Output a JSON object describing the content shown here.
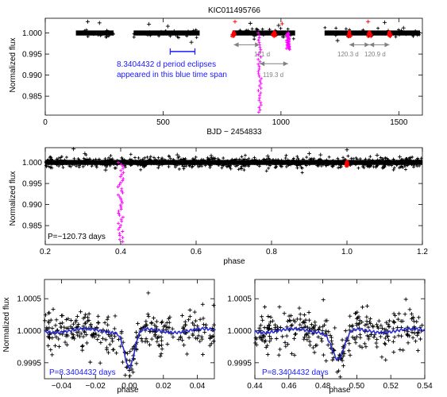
{
  "chart_data": [
    {
      "type": "scatter",
      "title": "KIC011495766",
      "xlabel": "BJD − 2454833",
      "ylabel": "Normalized flux",
      "xlim": [
        0,
        1600
      ],
      "ylim": [
        0.9805,
        1.0035
      ],
      "xticks": [
        0,
        500,
        1000,
        1500
      ],
      "yticks": [
        0.985,
        0.99,
        0.995,
        1.0
      ],
      "ytick_labels": [
        "0.985",
        "0.990",
        "0.995",
        "1.000"
      ],
      "observed_segments": [
        [
          130,
          290
        ],
        [
          375,
          655
        ],
        [
          795,
          1060
        ],
        [
          1185,
          1590
        ]
      ],
      "red_eclipses_x": [
        800,
        972,
        1290,
        1375,
        1460
      ],
      "magenta_eclipses": [
        {
          "x": 910,
          "min_flux": 0.9812
        },
        {
          "x": 1030,
          "min_flux": 0.9961
        }
      ],
      "blue_span": [
        530,
        635
      ],
      "annotations": [
        {
          "text": "8.3404432 d period eclipses",
          "x": 575,
          "y": 0.9942,
          "color": "#1a1aff"
        },
        {
          "text": "appeared in this blue time span",
          "x": 575,
          "y": 0.9927,
          "color": "#1a1aff"
        },
        {
          "text": "121 d",
          "x": 855,
          "y": 0.9964,
          "color": "#808080",
          "arrow": [
            800,
            910
          ]
        },
        {
          "text": "119.3 d",
          "x": 975,
          "y": 0.9917,
          "color": "#808080",
          "arrow": [
            910,
            1030
          ]
        },
        {
          "text": "120.3 d",
          "x": 1330,
          "y": 0.9964,
          "color": "#808080",
          "arrow": [
            1290,
            1375
          ]
        },
        {
          "text": "120.9 d",
          "x": 1420,
          "y": 0.9964,
          "color": "#808080",
          "arrow": [
            1375,
            1460
          ]
        }
      ]
    },
    {
      "type": "scatter",
      "xlabel": "phase",
      "ylabel": "Normalized flux",
      "xlim": [
        0.2,
        1.2
      ],
      "ylim": [
        0.9805,
        1.0035
      ],
      "xticks": [
        0.2,
        0.4,
        0.6,
        0.8,
        1.0,
        1.2
      ],
      "xtick_labels": [
        "0.2",
        "0.4",
        "0.6",
        "0.8",
        "1.0",
        "1.2"
      ],
      "yticks": [
        0.985,
        0.99,
        0.995,
        1.0
      ],
      "ytick_labels": [
        "0.985",
        "0.990",
        "0.995",
        "1.000"
      ],
      "magenta_eclipse": {
        "phase": 0.4,
        "min_flux": 0.9812
      },
      "red_eclipse_phase": 1.0,
      "annotation": "P=~120.73 days"
    },
    {
      "type": "scatter",
      "xlabel": "phase",
      "ylabel": "Normalized flux",
      "xlim": [
        -0.05,
        0.05
      ],
      "ylim": [
        0.99925,
        1.0008
      ],
      "xticks": [
        -0.04,
        -0.02,
        0.0,
        0.02,
        0.04
      ],
      "xtick_labels": [
        "−0.04",
        "−0.02",
        "0.00",
        "0.02",
        "0.04"
      ],
      "yticks": [
        0.9995,
        1.0,
        1.0005
      ],
      "ytick_labels": [
        "0.9995",
        "1.0000",
        "1.0005"
      ],
      "dip": {
        "center": 0.0,
        "depth": 0.00058,
        "width": 0.004
      },
      "trend_color": "#2b2bd6",
      "annotation": "P=8.3404432 days"
    },
    {
      "type": "scatter",
      "xlabel": "phase",
      "xlim": [
        0.44,
        0.54
      ],
      "ylim": [
        0.99925,
        1.0008
      ],
      "xticks": [
        0.44,
        0.46,
        0.48,
        0.5,
        0.52,
        0.54
      ],
      "xtick_labels": [
        "0.44",
        "0.46",
        "0.48",
        "0.50",
        "0.52",
        "0.54"
      ],
      "yticks": [
        0.9995,
        1.0,
        1.0005
      ],
      "ytick_labels": [
        "0.9995",
        "1.0000",
        "1.0005"
      ],
      "dip": {
        "center": 0.489,
        "depth": 0.00045,
        "width": 0.005
      },
      "trend_color": "#2b2bd6",
      "annotation": "P=8.3404432 days"
    }
  ]
}
